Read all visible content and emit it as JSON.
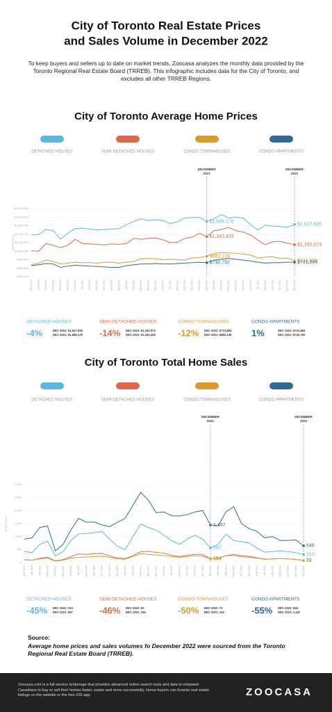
{
  "header": {
    "title_lines": [
      "City of Toronto Real Estate Prices",
      "and Sales Volume in December 2022"
    ],
    "intro": "To keep buyers and sellers up to date on market trends, Zoocasa analyzes the monthly data provided by the Toronto Regional Real Estate Board (TRREB). This infographic includes data for the City of Toronto, and excludes all other TRREB Regions."
  },
  "chart_data": [
    {
      "type": "line",
      "title": "City of Toronto Average Home Prices",
      "y_label": "HOME PRICE",
      "grid": true,
      "categories": [
        "DEC 2019",
        "JAN 2020",
        "FEB 2020",
        "MAR 2020",
        "APR 2020",
        "MAY 2020",
        "JUN 2020",
        "JUL 2020",
        "AUG 2020",
        "SEP 2020",
        "OCT 2020",
        "NOV 2020",
        "DEC 2020",
        "JAN 2021",
        "FEB 2021",
        "MAR 2021",
        "APR 2021",
        "MAY 2021",
        "JUN 2021",
        "JUL 2021",
        "AUG 2021",
        "SEP 2021",
        "OCT 2021",
        "NOV 2021",
        "DEC 2021",
        "JAN 2022",
        "FEB 2022",
        "MAR 2022",
        "APR 2022",
        "MAY 2022",
        "JUN 2022",
        "JUL 2022",
        "AUG 2022",
        "SEP 2022",
        "OCT 2022",
        "NOV 2022",
        "DEC 2022"
      ],
      "ylim": [
        400000,
        2000000
      ],
      "yticks": [
        {
          "value": 400000,
          "label": "$400,000"
        },
        {
          "value": 600000,
          "label": "$600,000"
        },
        {
          "value": 800000,
          "label": "$800,000"
        },
        {
          "value": 1000000,
          "label": "$1,000,000"
        },
        {
          "value": 1200000,
          "label": "$1,200,000"
        },
        {
          "value": 1400000,
          "label": "$1,400,000"
        },
        {
          "value": 1600000,
          "label": "$1,600,000"
        },
        {
          "value": 1800000,
          "label": "$1,800,000"
        },
        {
          "value": 2000000,
          "label": "$2,000,000"
        }
      ],
      "annotations": [
        {
          "x": "DEC 2021",
          "lines": [
            "DECEMBER",
            "2021"
          ]
        },
        {
          "x": "DEC 2022",
          "lines": [
            "DECEMBER",
            "2022"
          ]
        }
      ],
      "series": [
        {
          "name": "DETACHED HOUSES",
          "color": "#5ab8e0",
          "values": [
            1380000,
            1390000,
            1510000,
            1480000,
            1280000,
            1420000,
            1530000,
            1540000,
            1520000,
            1500000,
            1510000,
            1520000,
            1530000,
            1620000,
            1700000,
            1760000,
            1720000,
            1740000,
            1720000,
            1650000,
            1690000,
            1780000,
            1790000,
            1800000,
            1698178,
            1760000,
            1860000,
            1780000,
            1800000,
            1780000,
            1620000,
            1500000,
            1610000,
            1590000,
            1580000,
            1560000,
            1627635
          ],
          "value_labels": [
            null,
            null,
            null,
            null,
            null,
            null,
            null,
            null,
            null,
            null,
            null,
            null,
            null,
            null,
            null,
            null,
            null,
            null,
            null,
            null,
            null,
            null,
            null,
            null,
            "$1,698,178",
            null,
            null,
            null,
            null,
            null,
            null,
            null,
            null,
            null,
            null,
            null,
            "$1,627,635"
          ]
        },
        {
          "name": "SEMI-DETACHED HOUSES",
          "color": "#e0694a",
          "values": [
            1010000,
            1000000,
            1180000,
            1140000,
            1080000,
            1140000,
            1280000,
            1180000,
            1170000,
            1160000,
            1150000,
            1170000,
            1160000,
            1180000,
            1300000,
            1280000,
            1300000,
            1310000,
            1270000,
            1200000,
            1210000,
            1300000,
            1330000,
            1420000,
            1342429,
            1480000,
            1510000,
            1560000,
            1480000,
            1450000,
            1380000,
            1260000,
            1150000,
            1220000,
            1230000,
            1190000,
            1152073
          ],
          "value_labels": [
            null,
            null,
            null,
            null,
            null,
            null,
            null,
            null,
            null,
            null,
            null,
            null,
            null,
            null,
            null,
            null,
            null,
            null,
            null,
            null,
            null,
            null,
            null,
            null,
            "$1,342,429",
            null,
            null,
            null,
            null,
            null,
            null,
            null,
            null,
            null,
            null,
            null,
            "$1,152,073"
          ]
        },
        {
          "name": "CONDO TOWNHOUSES",
          "color": "#dc9a2a",
          "values": [
            680000,
            720000,
            790000,
            760000,
            700000,
            720000,
            740000,
            730000,
            730000,
            720000,
            740000,
            740000,
            720000,
            740000,
            760000,
            820000,
            830000,
            820000,
            800000,
            810000,
            800000,
            790000,
            840000,
            850000,
            882139,
            940000,
            970000,
            960000,
            950000,
            930000,
            910000,
            840000,
            860000,
            870000,
            830000,
            840000,
            774884
          ],
          "value_labels": [
            null,
            null,
            null,
            null,
            null,
            null,
            null,
            null,
            null,
            null,
            null,
            null,
            null,
            null,
            null,
            null,
            null,
            null,
            null,
            null,
            null,
            null,
            null,
            null,
            "$882,139",
            null,
            null,
            null,
            null,
            null,
            null,
            null,
            null,
            null,
            null,
            null,
            "$774,884"
          ]
        },
        {
          "name": "CONDO APARTMENTS",
          "color": "#2e6a94",
          "values": [
            660000,
            680000,
            710000,
            700000,
            620000,
            650000,
            670000,
            660000,
            650000,
            640000,
            630000,
            620000,
            620000,
            660000,
            680000,
            700000,
            700000,
            710000,
            700000,
            700000,
            710000,
            720000,
            730000,
            740000,
            730792,
            790000,
            810000,
            830000,
            810000,
            790000,
            770000,
            740000,
            720000,
            730000,
            730000,
            740000,
            741584
          ],
          "value_labels": [
            null,
            null,
            null,
            null,
            null,
            null,
            null,
            null,
            null,
            null,
            null,
            null,
            null,
            null,
            null,
            null,
            null,
            null,
            null,
            null,
            null,
            null,
            null,
            null,
            "$730,792",
            null,
            null,
            null,
            null,
            null,
            null,
            null,
            null,
            null,
            null,
            null,
            "$741,584"
          ]
        }
      ],
      "summary": [
        {
          "change": "-4%",
          "lines": [
            "DEC 2022: $1,627,635",
            "DEC 2021: $1,698,178"
          ]
        },
        {
          "change": "-14%",
          "lines": [
            "DEC 2022: $1,152,073",
            "DEC 2021: $1,342,429"
          ]
        },
        {
          "change": "-12%",
          "lines": [
            "DEC 2022: $774,884",
            "DEC 2021: $882,139"
          ]
        },
        {
          "change": "1%",
          "lines": [
            "DEC 2022: $741,584",
            "DEC 2021: $730,792"
          ]
        }
      ]
    },
    {
      "type": "line",
      "title": "City of Toronto Total Home Sales",
      "y_label": "HOME SALES",
      "grid": true,
      "categories": [
        "DEC 2019",
        "JAN 2020",
        "FEB 2020",
        "MAR 2020",
        "APR 2020",
        "MAY 2020",
        "JUN 2020",
        "JUL 2020",
        "AUG 2020",
        "SEP 2020",
        "OCT 2020",
        "NOV 2020",
        "DEC 2020",
        "JAN 2021",
        "FEB 2021",
        "MAR 2021",
        "APR 2021",
        "MAY 2021",
        "JUN 2021",
        "JUL 2021",
        "AUG 2021",
        "SEP 2021",
        "OCT 2021",
        "NOV 2021",
        "DEC 2021",
        "JAN 2022",
        "FEB 2022",
        "MAR 2022",
        "APR 2022",
        "MAY 2022",
        "JUN 2022",
        "JUL 2022",
        "AUG 2022",
        "SEP 2022",
        "OCT 2022",
        "NOV 2022",
        "DEC 2022"
      ],
      "ylim": [
        0,
        3000
      ],
      "yticks": [
        0,
        500,
        {
          "value": 1000,
          "label": "1,000"
        },
        {
          "value": 1500,
          "label": "1,500"
        },
        {
          "value": 2000,
          "label": "2,000"
        },
        {
          "value": 2500,
          "label": "2,500"
        },
        {
          "value": 3000,
          "label": "3,000"
        }
      ],
      "annotations": [
        {
          "x": "DEC 2021",
          "lines": [
            "DECEMBER",
            "2021"
          ]
        },
        {
          "x": "DEC 2022",
          "lines": [
            "DECEMBER",
            "2022"
          ]
        }
      ],
      "series": [
        {
          "name": "DETACHED HOUSES",
          "color": "#5ab8e0",
          "values": [
            430,
            380,
            700,
            820,
            260,
            420,
            850,
            1100,
            1120,
            1150,
            1200,
            900,
            620,
            500,
            1000,
            1480,
            1350,
            1250,
            1050,
            850,
            700,
            900,
            1050,
            900,
            567,
            700,
            1100,
            850,
            800,
            750,
            550,
            400,
            420,
            450,
            420,
            380,
            310
          ],
          "value_labels": [
            null,
            null,
            null,
            null,
            null,
            null,
            null,
            null,
            null,
            null,
            null,
            null,
            null,
            null,
            null,
            null,
            null,
            null,
            null,
            null,
            null,
            null,
            null,
            null,
            "567",
            null,
            null,
            null,
            null,
            null,
            null,
            null,
            null,
            null,
            null,
            null,
            "310"
          ]
        },
        {
          "name": "SEMI-DETACHED HOUSES",
          "color": "#e0694a",
          "values": [
            110,
            90,
            160,
            210,
            60,
            110,
            230,
            330,
            310,
            340,
            350,
            260,
            170,
            150,
            260,
            420,
            430,
            390,
            360,
            270,
            230,
            270,
            320,
            300,
            154,
            160,
            260,
            310,
            260,
            240,
            180,
            130,
            140,
            150,
            140,
            120,
            83
          ],
          "value_labels": [
            null,
            null,
            null,
            null,
            null,
            null,
            null,
            null,
            null,
            null,
            null,
            null,
            null,
            null,
            null,
            null,
            null,
            null,
            null,
            null,
            null,
            null,
            null,
            null,
            "154",
            null,
            null,
            null,
            null,
            null,
            null,
            null,
            null,
            null,
            null,
            null,
            "83"
          ]
        },
        {
          "name": "CONDO TOWNHOUSES",
          "color": "#dc9a2a",
          "values": [
            100,
            90,
            140,
            170,
            50,
            90,
            170,
            200,
            210,
            230,
            240,
            200,
            140,
            130,
            230,
            340,
            310,
            290,
            260,
            230,
            200,
            230,
            260,
            240,
            144,
            170,
            260,
            260,
            220,
            200,
            170,
            120,
            140,
            150,
            140,
            120,
            72
          ],
          "value_labels": [
            null,
            null,
            null,
            null,
            null,
            null,
            null,
            null,
            null,
            null,
            null,
            null,
            null,
            null,
            null,
            null,
            null,
            null,
            null,
            null,
            null,
            null,
            null,
            null,
            "144",
            null,
            null,
            null,
            null,
            null,
            null,
            null,
            null,
            null,
            null,
            null,
            "72"
          ]
        },
        {
          "name": "CONDO APARTMENTS",
          "color": "#2e6a94",
          "values": [
            900,
            950,
            1350,
            1400,
            450,
            700,
            1250,
            1700,
            1550,
            1560,
            1450,
            1380,
            1550,
            1700,
            2200,
            2700,
            2400,
            1920,
            1950,
            1800,
            1790,
            1850,
            1950,
            2000,
            1447,
            1420,
            1950,
            2150,
            1500,
            1300,
            1200,
            950,
            1000,
            850,
            850,
            870,
            646
          ],
          "value_labels": [
            null,
            null,
            null,
            null,
            null,
            null,
            null,
            null,
            null,
            null,
            null,
            null,
            null,
            null,
            null,
            null,
            null,
            null,
            null,
            null,
            null,
            null,
            null,
            null,
            "1,447",
            null,
            null,
            null,
            null,
            null,
            null,
            null,
            null,
            null,
            null,
            null,
            "646"
          ]
        }
      ],
      "summary": [
        {
          "change": "-45%",
          "lines": [
            "DEC 2022: 310",
            "DEC 2021: 567"
          ]
        },
        {
          "change": "-46%",
          "lines": [
            "DEC 2022: 83",
            "DEC 2021: 154"
          ]
        },
        {
          "change": "-50%",
          "lines": [
            "DEC 2022: 72",
            "DEC 2021: 144"
          ]
        },
        {
          "change": "-55%",
          "lines": [
            "DEC 2022: 646",
            "DEC 2021: 1,447"
          ]
        }
      ]
    }
  ],
  "source": {
    "heading": "Source:",
    "text": "Average home prices and sales volumes fo December 2022 were sourced from the Toronto Regional Real Estate Board (TRREB)."
  },
  "footer": {
    "text": "Zoocasa.com is a full-service brokerage that provides advanced online search tools and data to empower Canadians to buy or sell their homes faster, easier and more successfully. Home buyers can browse real estate listings on the website or the free iOS app.",
    "logo": "ZOOCASA"
  }
}
